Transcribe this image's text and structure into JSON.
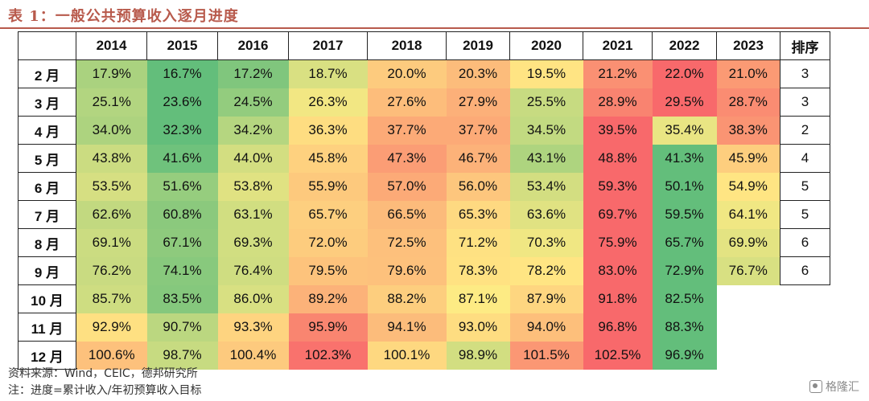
{
  "title": "表 1：一般公共预算收入逐月进度",
  "table": {
    "columns": [
      "2014",
      "2015",
      "2016",
      "2017",
      "2018",
      "2019",
      "2020",
      "2021",
      "2022",
      "2023"
    ],
    "rank_header": "排序",
    "rows": [
      {
        "label": "2 月",
        "values": [
          "17.9%",
          "16.7%",
          "17.2%",
          "18.7%",
          "20.0%",
          "20.3%",
          "19.5%",
          "21.2%",
          "22.0%",
          "21.0%"
        ],
        "rank": "3"
      },
      {
        "label": "3 月",
        "values": [
          "25.1%",
          "23.6%",
          "24.5%",
          "26.3%",
          "27.6%",
          "27.9%",
          "25.5%",
          "28.9%",
          "29.5%",
          "28.7%"
        ],
        "rank": "3"
      },
      {
        "label": "4 月",
        "values": [
          "34.0%",
          "32.3%",
          "34.2%",
          "36.3%",
          "37.7%",
          "37.7%",
          "34.5%",
          "39.5%",
          "35.4%",
          "38.3%"
        ],
        "rank": "2"
      },
      {
        "label": "5 月",
        "values": [
          "43.8%",
          "41.6%",
          "44.0%",
          "45.8%",
          "47.3%",
          "46.7%",
          "43.1%",
          "48.8%",
          "41.3%",
          "45.9%"
        ],
        "rank": "4"
      },
      {
        "label": "6 月",
        "values": [
          "53.5%",
          "51.6%",
          "53.8%",
          "55.9%",
          "57.0%",
          "56.0%",
          "53.4%",
          "59.3%",
          "50.1%",
          "54.9%"
        ],
        "rank": "5"
      },
      {
        "label": "7 月",
        "values": [
          "62.6%",
          "60.8%",
          "63.1%",
          "65.7%",
          "66.5%",
          "65.3%",
          "63.6%",
          "69.7%",
          "59.5%",
          "64.1%"
        ],
        "rank": "5"
      },
      {
        "label": "8 月",
        "values": [
          "69.1%",
          "67.1%",
          "69.3%",
          "72.0%",
          "72.5%",
          "71.2%",
          "70.3%",
          "75.9%",
          "65.7%",
          "69.9%"
        ],
        "rank": "6"
      },
      {
        "label": "9 月",
        "values": [
          "76.2%",
          "74.1%",
          "76.4%",
          "79.5%",
          "79.6%",
          "78.3%",
          "78.2%",
          "83.0%",
          "72.9%",
          "76.7%"
        ],
        "rank": "6"
      },
      {
        "label": "10 月",
        "values": [
          "85.7%",
          "83.5%",
          "86.0%",
          "89.2%",
          "88.2%",
          "87.1%",
          "87.9%",
          "91.8%",
          "82.5%",
          ""
        ],
        "rank": ""
      },
      {
        "label": "11 月",
        "values": [
          "92.9%",
          "90.7%",
          "93.3%",
          "95.9%",
          "94.1%",
          "93.0%",
          "94.0%",
          "96.8%",
          "88.3%",
          ""
        ],
        "rank": ""
      },
      {
        "label": "12 月",
        "values": [
          "100.6%",
          "98.7%",
          "100.4%",
          "102.3%",
          "100.1%",
          "98.9%",
          "101.5%",
          "102.5%",
          "96.9%",
          ""
        ],
        "rank": ""
      }
    ]
  },
  "footer": {
    "source": "资料来源：Wind，CEIC，德邦研究所",
    "note": "注：进度=累计收入/年初预算收入目标"
  },
  "watermark": "格隆汇"
}
